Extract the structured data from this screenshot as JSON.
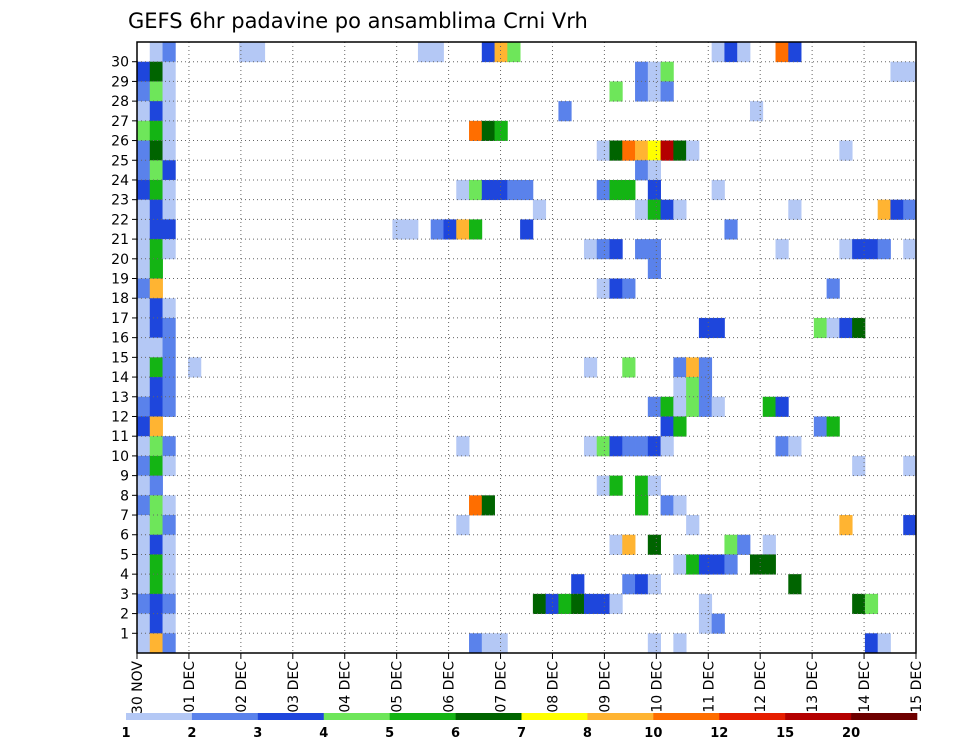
{
  "chart_data": {
    "type": "heatmap",
    "title": "GEFS 6hr padavine po ansamblima Crni Vrh",
    "xlabel": "",
    "ylabel": "",
    "x_start": "2024-11-30T00",
    "x_end": "2024-12-15T00",
    "x_step_hours": 6,
    "x_tick_labels": [
      "30 NOV",
      "01 DEC",
      "02 DEC",
      "03 DEC",
      "04 DEC",
      "05 DEC",
      "06 DEC",
      "07 DEC",
      "08 DEC",
      "09 DEC",
      "10 DEC",
      "11 DEC",
      "12 DEC",
      "13 DEC",
      "14 DEC",
      "15 DEC"
    ],
    "y_tick_labels": [
      "1",
      "2",
      "3",
      "4",
      "5",
      "6",
      "7",
      "8",
      "9",
      "10",
      "11",
      "12",
      "13",
      "14",
      "15",
      "16",
      "17",
      "18",
      "19",
      "20",
      "21",
      "22",
      "23",
      "24",
      "25",
      "26",
      "27",
      "28",
      "29",
      "30"
    ],
    "ylim": [
      0,
      30
    ],
    "grid": true,
    "legend": {
      "placement": "bottom",
      "labels": [
        "1",
        "2",
        "3",
        "4",
        "5",
        "6",
        "7",
        "8",
        "10",
        "12",
        "15",
        "20"
      ],
      "colors": [
        "#b4c8f5",
        "#5a82eb",
        "#1e46dc",
        "#6ee65a",
        "#14b414",
        "#006400",
        "#ffff00",
        "#ffb432",
        "#ff6e00",
        "#e61e00",
        "#b40000",
        "#6e0000"
      ]
    },
    "cells": [
      [
        "2024-11-30T06",
        30,
        1
      ],
      [
        "2024-11-30T12",
        30,
        2
      ],
      [
        "2024-12-02T00",
        30,
        1
      ],
      [
        "2024-12-02T06",
        30,
        1
      ],
      [
        "2024-12-05T12",
        30,
        1
      ],
      [
        "2024-12-05T18",
        30,
        1
      ],
      [
        "2024-12-06T18",
        30,
        3
      ],
      [
        "2024-12-07T00",
        30,
        8
      ],
      [
        "2024-12-07T06",
        30,
        4
      ],
      [
        "2024-12-11T06",
        30,
        1
      ],
      [
        "2024-12-11T12",
        30,
        3
      ],
      [
        "2024-12-11T18",
        30,
        1
      ],
      [
        "2024-12-12T12",
        30,
        10
      ],
      [
        "2024-12-12T18",
        30,
        3
      ],
      [
        "2024-11-30T00",
        29,
        3
      ],
      [
        "2024-11-30T06",
        29,
        6
      ],
      [
        "2024-11-30T12",
        29,
        1
      ],
      [
        "2024-12-09T18",
        29,
        2
      ],
      [
        "2024-12-10T00",
        29,
        1
      ],
      [
        "2024-12-10T06",
        29,
        4
      ],
      [
        "2024-12-14T18",
        29,
        1
      ],
      [
        "2024-12-15T00",
        29,
        1
      ],
      [
        "2024-11-30T00",
        28,
        2
      ],
      [
        "2024-11-30T06",
        28,
        4
      ],
      [
        "2024-11-30T12",
        28,
        1
      ],
      [
        "2024-12-09T06",
        28,
        4
      ],
      [
        "2024-12-09T18",
        28,
        2
      ],
      [
        "2024-12-10T00",
        28,
        1
      ],
      [
        "2024-12-10T06",
        28,
        2
      ],
      [
        "2024-11-30T00",
        27,
        1
      ],
      [
        "2024-11-30T06",
        27,
        3
      ],
      [
        "2024-11-30T12",
        27,
        1
      ],
      [
        "2024-12-08T06",
        27,
        2
      ],
      [
        "2024-12-12T00",
        27,
        1
      ],
      [
        "2024-11-30T00",
        26,
        4
      ],
      [
        "2024-11-30T06",
        26,
        5
      ],
      [
        "2024-11-30T12",
        26,
        1
      ],
      [
        "2024-12-06T12",
        26,
        10
      ],
      [
        "2024-12-06T18",
        26,
        6
      ],
      [
        "2024-12-07T00",
        26,
        5
      ],
      [
        "2024-11-30T00",
        25,
        2
      ],
      [
        "2024-11-30T06",
        25,
        6
      ],
      [
        "2024-11-30T12",
        25,
        1
      ],
      [
        "2024-12-09T00",
        25,
        1
      ],
      [
        "2024-12-09T06",
        25,
        6
      ],
      [
        "2024-12-09T12",
        25,
        10
      ],
      [
        "2024-12-09T18",
        25,
        8
      ],
      [
        "2024-12-10T00",
        25,
        7
      ],
      [
        "2024-12-10T06",
        25,
        15
      ],
      [
        "2024-12-10T12",
        25,
        6
      ],
      [
        "2024-12-10T18",
        25,
        1
      ],
      [
        "2024-12-13T18",
        25,
        1
      ],
      [
        "2024-11-30T00",
        24,
        2
      ],
      [
        "2024-11-30T06",
        24,
        4
      ],
      [
        "2024-11-30T12",
        24,
        3
      ],
      [
        "2024-12-09T18",
        24,
        2
      ],
      [
        "2024-12-10T00",
        24,
        1
      ],
      [
        "2024-11-30T00",
        23,
        3
      ],
      [
        "2024-11-30T06",
        23,
        5
      ],
      [
        "2024-11-30T12",
        23,
        1
      ],
      [
        "2024-12-06T06",
        23,
        1
      ],
      [
        "2024-12-06T12",
        23,
        4
      ],
      [
        "2024-12-06T18",
        23,
        3
      ],
      [
        "2024-12-07T00",
        23,
        3
      ],
      [
        "2024-12-07T06",
        23,
        2
      ],
      [
        "2024-12-07T12",
        23,
        2
      ],
      [
        "2024-12-09T00",
        23,
        2
      ],
      [
        "2024-12-09T06",
        23,
        5
      ],
      [
        "2024-12-09T12",
        23,
        5
      ],
      [
        "2024-12-10T00",
        23,
        3
      ],
      [
        "2024-12-11T06",
        23,
        1
      ],
      [
        "2024-11-30T00",
        22,
        1
      ],
      [
        "2024-11-30T06",
        22,
        3
      ],
      [
        "2024-11-30T12",
        22,
        1
      ],
      [
        "2024-12-07T18",
        22,
        1
      ],
      [
        "2024-12-09T18",
        22,
        1
      ],
      [
        "2024-12-10T00",
        22,
        5
      ],
      [
        "2024-12-10T06",
        22,
        3
      ],
      [
        "2024-12-10T12",
        22,
        1
      ],
      [
        "2024-12-12T18",
        22,
        1
      ],
      [
        "2024-12-14T12",
        22,
        8
      ],
      [
        "2024-12-14T18",
        22,
        3
      ],
      [
        "2024-12-15T00",
        22,
        2
      ],
      [
        "2024-11-30T00",
        21,
        1
      ],
      [
        "2024-11-30T06",
        21,
        3
      ],
      [
        "2024-11-30T12",
        21,
        3
      ],
      [
        "2024-12-05T00",
        21,
        1
      ],
      [
        "2024-12-05T06",
        21,
        1
      ],
      [
        "2024-12-05T18",
        21,
        2
      ],
      [
        "2024-12-06T00",
        21,
        3
      ],
      [
        "2024-12-06T06",
        21,
        8
      ],
      [
        "2024-12-06T12",
        21,
        5
      ],
      [
        "2024-12-07T12",
        21,
        3
      ],
      [
        "2024-12-11T12",
        21,
        2
      ],
      [
        "2024-11-30T00",
        20,
        1
      ],
      [
        "2024-11-30T06",
        20,
        5
      ],
      [
        "2024-11-30T12",
        20,
        1
      ],
      [
        "2024-12-08T18",
        20,
        1
      ],
      [
        "2024-12-09T00",
        20,
        2
      ],
      [
        "2024-12-09T06",
        20,
        3
      ],
      [
        "2024-12-09T18",
        20,
        2
      ],
      [
        "2024-12-10T00",
        20,
        2
      ],
      [
        "2024-12-12T12",
        20,
        1
      ],
      [
        "2024-12-13T18",
        20,
        1
      ],
      [
        "2024-12-14T00",
        20,
        3
      ],
      [
        "2024-12-14T06",
        20,
        3
      ],
      [
        "2024-12-14T12",
        20,
        2
      ],
      [
        "2024-12-15T00",
        20,
        1
      ],
      [
        "2024-11-30T00",
        19,
        1
      ],
      [
        "2024-11-30T06",
        19,
        5
      ],
      [
        "2024-12-10T00",
        19,
        2
      ],
      [
        "2024-11-30T00",
        18,
        2
      ],
      [
        "2024-11-30T06",
        18,
        8
      ],
      [
        "2024-12-09T00",
        18,
        1
      ],
      [
        "2024-12-09T06",
        18,
        3
      ],
      [
        "2024-12-09T12",
        18,
        2
      ],
      [
        "2024-12-13T12",
        18,
        2
      ],
      [
        "2024-11-30T00",
        17,
        1
      ],
      [
        "2024-11-30T06",
        17,
        3
      ],
      [
        "2024-11-30T12",
        17,
        1
      ],
      [
        "2024-11-30T00",
        16,
        1
      ],
      [
        "2024-11-30T06",
        16,
        3
      ],
      [
        "2024-11-30T12",
        16,
        2
      ],
      [
        "2024-12-11T00",
        16,
        3
      ],
      [
        "2024-12-11T06",
        16,
        3
      ],
      [
        "2024-12-13T06",
        16,
        4
      ],
      [
        "2024-12-13T12",
        16,
        1
      ],
      [
        "2024-12-13T18",
        16,
        3
      ],
      [
        "2024-12-14T00",
        16,
        6
      ],
      [
        "2024-11-30T00",
        15,
        1
      ],
      [
        "2024-11-30T06",
        15,
        1
      ],
      [
        "2024-11-30T12",
        15,
        2
      ],
      [
        "2024-11-30T00",
        14,
        1
      ],
      [
        "2024-11-30T06",
        14,
        5
      ],
      [
        "2024-11-30T12",
        14,
        2
      ],
      [
        "2024-12-01T00",
        14,
        1
      ],
      [
        "2024-12-08T18",
        14,
        1
      ],
      [
        "2024-12-09T12",
        14,
        4
      ],
      [
        "2024-12-10T12",
        14,
        2
      ],
      [
        "2024-12-10T18",
        14,
        8
      ],
      [
        "2024-12-11T00",
        14,
        2
      ],
      [
        "2024-11-30T00",
        13,
        1
      ],
      [
        "2024-11-30T06",
        13,
        3
      ],
      [
        "2024-11-30T12",
        13,
        2
      ],
      [
        "2024-12-10T12",
        13,
        1
      ],
      [
        "2024-12-10T18",
        13,
        4
      ],
      [
        "2024-12-11T00",
        13,
        2
      ],
      [
        "2024-11-30T00",
        12,
        2
      ],
      [
        "2024-11-30T06",
        12,
        3
      ],
      [
        "2024-11-30T12",
        12,
        2
      ],
      [
        "2024-12-10T00",
        12,
        2
      ],
      [
        "2024-12-10T06",
        12,
        5
      ],
      [
        "2024-12-10T12",
        12,
        1
      ],
      [
        "2024-12-10T18",
        12,
        4
      ],
      [
        "2024-12-11T00",
        12,
        2
      ],
      [
        "2024-12-11T06",
        12,
        1
      ],
      [
        "2024-12-12T06",
        12,
        5
      ],
      [
        "2024-12-12T12",
        12,
        3
      ],
      [
        "2024-11-30T00",
        11,
        3
      ],
      [
        "2024-11-30T06",
        11,
        8
      ],
      [
        "2024-12-10T06",
        11,
        3
      ],
      [
        "2024-12-10T12",
        11,
        5
      ],
      [
        "2024-12-13T06",
        11,
        2
      ],
      [
        "2024-12-13T12",
        11,
        5
      ],
      [
        "2024-11-30T00",
        10,
        1
      ],
      [
        "2024-11-30T06",
        10,
        4
      ],
      [
        "2024-11-30T12",
        10,
        2
      ],
      [
        "2024-12-06T06",
        10,
        1
      ],
      [
        "2024-12-08T18",
        10,
        1
      ],
      [
        "2024-12-09T00",
        10,
        4
      ],
      [
        "2024-12-09T06",
        10,
        3
      ],
      [
        "2024-12-09T12",
        10,
        2
      ],
      [
        "2024-12-09T18",
        10,
        2
      ],
      [
        "2024-12-10T00",
        10,
        3
      ],
      [
        "2024-12-10T06",
        10,
        1
      ],
      [
        "2024-12-12T12",
        10,
        2
      ],
      [
        "2024-12-12T18",
        10,
        1
      ],
      [
        "2024-11-30T00",
        9,
        2
      ],
      [
        "2024-11-30T06",
        9,
        5
      ],
      [
        "2024-11-30T12",
        9,
        1
      ],
      [
        "2024-12-14T00",
        9,
        1
      ],
      [
        "2024-12-15T00",
        9,
        1
      ],
      [
        "2024-11-30T00",
        8,
        1
      ],
      [
        "2024-11-30T06",
        8,
        2
      ],
      [
        "2024-12-09T00",
        8,
        1
      ],
      [
        "2024-12-09T06",
        8,
        5
      ],
      [
        "2024-12-09T18",
        8,
        5
      ],
      [
        "2024-12-10T00",
        8,
        1
      ],
      [
        "2024-11-30T00",
        7,
        2
      ],
      [
        "2024-11-30T06",
        7,
        4
      ],
      [
        "2024-11-30T12",
        7,
        1
      ],
      [
        "2024-12-06T12",
        7,
        10
      ],
      [
        "2024-12-06T18",
        7,
        6
      ],
      [
        "2024-12-09T18",
        7,
        5
      ],
      [
        "2024-12-10T06",
        7,
        2
      ],
      [
        "2024-12-10T12",
        7,
        1
      ],
      [
        "2024-11-30T00",
        6,
        1
      ],
      [
        "2024-11-30T06",
        6,
        4
      ],
      [
        "2024-11-30T12",
        6,
        2
      ],
      [
        "2024-12-06T06",
        6,
        1
      ],
      [
        "2024-12-10T18",
        6,
        1
      ],
      [
        "2024-12-13T18",
        6,
        8
      ],
      [
        "2024-12-15T00",
        6,
        3
      ],
      [
        "2024-11-30T00",
        5,
        1
      ],
      [
        "2024-11-30T06",
        5,
        3
      ],
      [
        "2024-11-30T12",
        5,
        1
      ],
      [
        "2024-12-09T06",
        5,
        1
      ],
      [
        "2024-12-09T12",
        5,
        8
      ],
      [
        "2024-12-10T00",
        5,
        6
      ],
      [
        "2024-12-11T12",
        5,
        4
      ],
      [
        "2024-12-11T18",
        5,
        2
      ],
      [
        "2024-12-12T06",
        5,
        1
      ],
      [
        "2024-11-30T00",
        4,
        1
      ],
      [
        "2024-11-30T06",
        4,
        5
      ],
      [
        "2024-11-30T12",
        4,
        1
      ],
      [
        "2024-12-10T12",
        4,
        1
      ],
      [
        "2024-12-10T18",
        4,
        5
      ],
      [
        "2024-12-11T00",
        4,
        3
      ],
      [
        "2024-12-11T06",
        4,
        3
      ],
      [
        "2024-12-11T12",
        4,
        2
      ],
      [
        "2024-12-12T00",
        4,
        6
      ],
      [
        "2024-12-12T06",
        4,
        6
      ],
      [
        "2024-11-30T00",
        3,
        1
      ],
      [
        "2024-11-30T06",
        3,
        5
      ],
      [
        "2024-11-30T12",
        3,
        1
      ],
      [
        "2024-12-08T12",
        3,
        3
      ],
      [
        "2024-12-09T12",
        3,
        2
      ],
      [
        "2024-12-09T18",
        3,
        3
      ],
      [
        "2024-12-10T00",
        3,
        1
      ],
      [
        "2024-12-12T18",
        3,
        6
      ],
      [
        "2024-11-30T00",
        2,
        2
      ],
      [
        "2024-11-30T06",
        2,
        3
      ],
      [
        "2024-11-30T12",
        2,
        2
      ],
      [
        "2024-12-07T18",
        2,
        6
      ],
      [
        "2024-12-08T00",
        2,
        3
      ],
      [
        "2024-12-08T06",
        2,
        5
      ],
      [
        "2024-12-08T12",
        2,
        6
      ],
      [
        "2024-12-08T18",
        2,
        3
      ],
      [
        "2024-12-09T00",
        2,
        3
      ],
      [
        "2024-12-09T06",
        2,
        1
      ],
      [
        "2024-12-11T00",
        2,
        1
      ],
      [
        "2024-12-14T00",
        2,
        6
      ],
      [
        "2024-12-14T06",
        2,
        4
      ],
      [
        "2024-11-30T00",
        1,
        1
      ],
      [
        "2024-11-30T06",
        1,
        3
      ],
      [
        "2024-11-30T12",
        1,
        1
      ],
      [
        "2024-12-11T00",
        1,
        1
      ],
      [
        "2024-12-11T06",
        1,
        2
      ],
      [
        "2024-11-30T00",
        0,
        1
      ],
      [
        "2024-11-30T06",
        0,
        8
      ],
      [
        "2024-11-30T12",
        0,
        2
      ],
      [
        "2024-12-06T12",
        0,
        2
      ],
      [
        "2024-12-06T18",
        0,
        1
      ],
      [
        "2024-12-07T00",
        0,
        1
      ],
      [
        "2024-12-10T00",
        0,
        1
      ],
      [
        "2024-12-10T12",
        0,
        1
      ],
      [
        "2024-12-14T06",
        0,
        3
      ],
      [
        "2024-12-14T12",
        0,
        1
      ]
    ]
  }
}
